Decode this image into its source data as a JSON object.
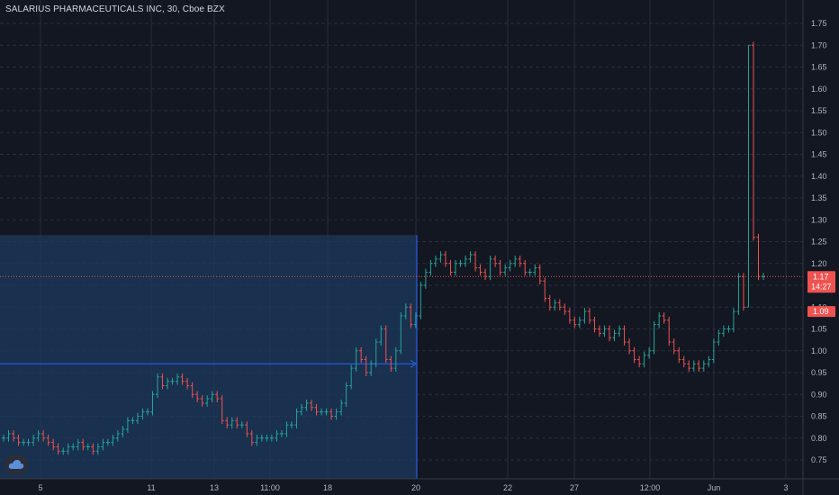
{
  "header": {
    "title": "SALARIUS PHARMACEUTICALS INC, 30, Cboe BZX"
  },
  "price_labels": {
    "last_price": "1.17",
    "countdown": "14:27",
    "low_marker": "1.09"
  },
  "colors": {
    "background": "#131722",
    "grid": "#2a2e39",
    "up": "#26a69a",
    "down": "#ef5350",
    "text": "#b2b5be",
    "zone_fill": "#1c3a5e",
    "zone_line": "#2962ff",
    "last_price_line": "#ef5350"
  },
  "logo": {
    "icon": "cloud-icon"
  },
  "chart_data": {
    "type": "ohlc",
    "title": "SALARIUS PHARMACEUTICALS INC, 30, Cboe BZX",
    "y_axis": {
      "ylim": [
        0.72,
        1.76
      ],
      "ticks": [
        "0.75",
        "0.80",
        "0.85",
        "0.90",
        "0.95",
        "1.00",
        "1.05",
        "1.10",
        "1.15",
        "1.20",
        "1.25",
        "1.30",
        "1.35",
        "1.40",
        "1.45",
        "1.50",
        "1.55",
        "1.60",
        "1.65",
        "1.70",
        "1.75"
      ],
      "position": "right"
    },
    "x_axis": {
      "tick_labels": [
        "5",
        "11",
        "13",
        "11:00",
        "18",
        "20",
        "22",
        "27",
        "12:00",
        "Jun",
        "3"
      ]
    },
    "grid": true,
    "zone": {
      "top": 1.265,
      "bottom": 0.72,
      "mid": 0.97
    },
    "last_price": 1.17,
    "ohlc_close_series": [
      0.8,
      0.81,
      0.8,
      0.79,
      0.79,
      0.79,
      0.8,
      0.81,
      0.8,
      0.79,
      0.78,
      0.77,
      0.77,
      0.78,
      0.78,
      0.79,
      0.78,
      0.78,
      0.77,
      0.78,
      0.79,
      0.79,
      0.8,
      0.81,
      0.82,
      0.84,
      0.84,
      0.85,
      0.86,
      0.86,
      0.9,
      0.94,
      0.92,
      0.93,
      0.93,
      0.94,
      0.93,
      0.92,
      0.9,
      0.89,
      0.88,
      0.89,
      0.9,
      0.89,
      0.84,
      0.83,
      0.84,
      0.83,
      0.83,
      0.81,
      0.79,
      0.8,
      0.8,
      0.8,
      0.8,
      0.81,
      0.81,
      0.83,
      0.83,
      0.86,
      0.87,
      0.88,
      0.87,
      0.86,
      0.86,
      0.86,
      0.85,
      0.86,
      0.88,
      0.92,
      0.96,
      1.0,
      0.98,
      0.95,
      0.97,
      1.02,
      1.05,
      0.98,
      0.96,
      1.0,
      1.08,
      1.1,
      1.06,
      1.08,
      1.15,
      1.18,
      1.2,
      1.21,
      1.22,
      1.2,
      1.18,
      1.2,
      1.2,
      1.21,
      1.22,
      1.19,
      1.18,
      1.17,
      1.21,
      1.2,
      1.18,
      1.19,
      1.2,
      1.21,
      1.2,
      1.18,
      1.18,
      1.19,
      1.16,
      1.12,
      1.1,
      1.11,
      1.1,
      1.09,
      1.07,
      1.06,
      1.07,
      1.09,
      1.07,
      1.05,
      1.04,
      1.05,
      1.03,
      1.04,
      1.05,
      1.02,
      1.0,
      0.98,
      0.97,
      0.99,
      1.0,
      1.06,
      1.08,
      1.07,
      1.02,
      1.0,
      0.98,
      0.97,
      0.96,
      0.97,
      0.96,
      0.97,
      0.98,
      1.02,
      1.04,
      1.05,
      1.05,
      1.09,
      1.17,
      1.1,
      1.7,
      1.26,
      1.17,
      1.17
    ]
  }
}
